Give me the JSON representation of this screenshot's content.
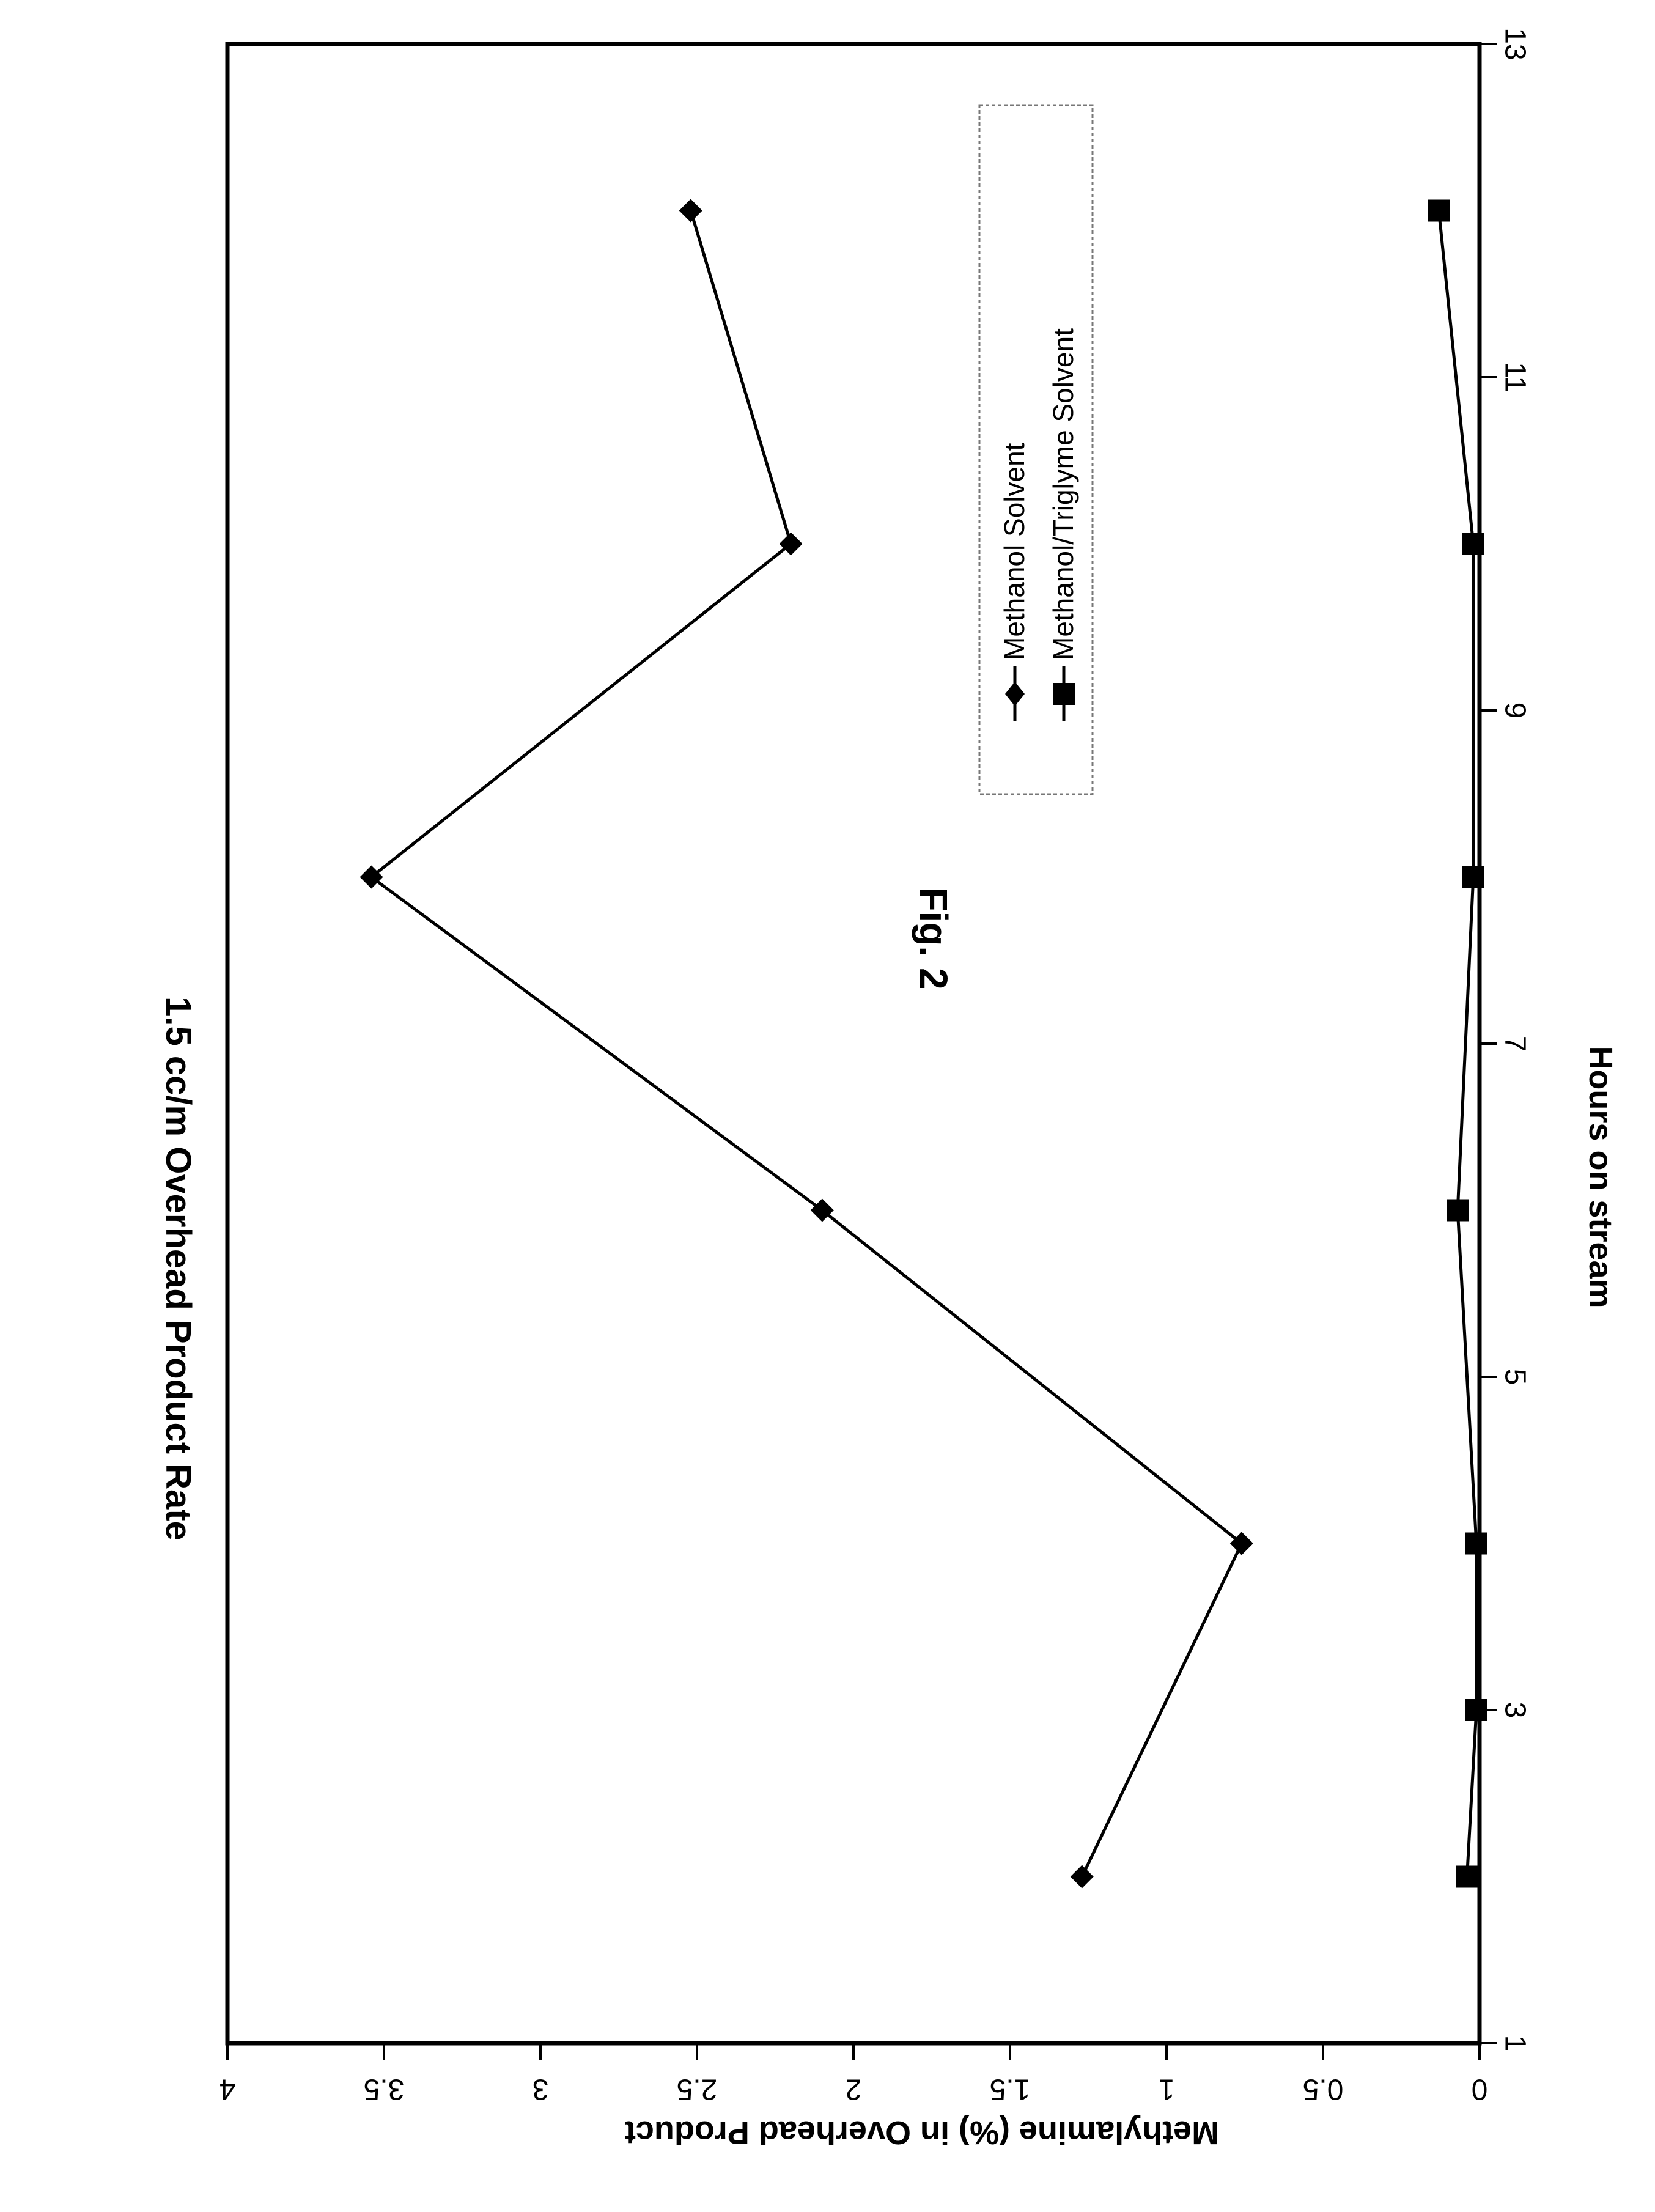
{
  "figure_label": "Fig. 2",
  "chart_data": {
    "type": "line",
    "title": "1.5 cc/m Overhead Product Rate",
    "xlabel": "Hours on stream",
    "ylabel": "Methylamine (%) in Overhead Product",
    "xlim": [
      1,
      13
    ],
    "ylim": [
      0,
      4
    ],
    "x_ticks": [
      "1",
      "3",
      "5",
      "7",
      "9",
      "11",
      "13"
    ],
    "y_ticks": [
      "0",
      "0.5",
      "1",
      "1.5",
      "2",
      "2.5",
      "3",
      "3.5",
      "4"
    ],
    "grid": false,
    "legend_position": "top-right",
    "orientation": "rotated 90 degrees clockwise",
    "series": [
      {
        "name": "Methanol Solvent",
        "marker": "diamond",
        "color": "#000000",
        "x": [
          2,
          4,
          6,
          8,
          10,
          12
        ],
        "y": [
          1.27,
          0.76,
          2.1,
          3.54,
          2.2,
          2.52
        ]
      },
      {
        "name": "Methanol/Triglyme Solvent",
        "marker": "square",
        "color": "#000000",
        "x": [
          2,
          3,
          4,
          6,
          8,
          10,
          12
        ],
        "y": [
          0.04,
          0.01,
          0.01,
          0.07,
          0.02,
          0.02,
          0.13
        ]
      }
    ]
  }
}
